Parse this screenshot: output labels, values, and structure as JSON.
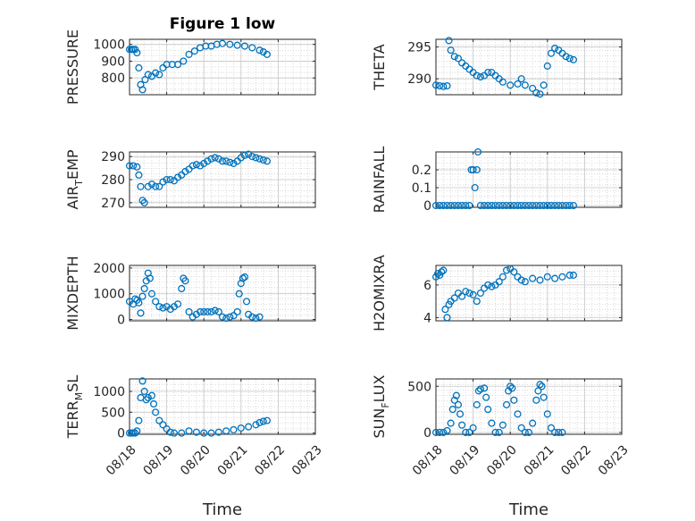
{
  "chart_data": [
    {
      "type": "scatter",
      "title": "Figure 1 low",
      "ylabel": "PRESSURE",
      "xlabel": "",
      "ylim": [
        700,
        1030
      ],
      "yticks": [
        800,
        900,
        1000
      ],
      "xlim": [
        0,
        5
      ],
      "xticklabels": [],
      "marker_color": "#0072BD",
      "grid": true,
      "points": [
        [
          0.0,
          970
        ],
        [
          0.05,
          970
        ],
        [
          0.1,
          970
        ],
        [
          0.15,
          970
        ],
        [
          0.2,
          950
        ],
        [
          0.25,
          860
        ],
        [
          0.3,
          760
        ],
        [
          0.35,
          730
        ],
        [
          0.42,
          790
        ],
        [
          0.5,
          820
        ],
        [
          0.6,
          810
        ],
        [
          0.7,
          830
        ],
        [
          0.8,
          820
        ],
        [
          0.9,
          860
        ],
        [
          1.0,
          880
        ],
        [
          1.15,
          880
        ],
        [
          1.3,
          880
        ],
        [
          1.45,
          900
        ],
        [
          1.6,
          940
        ],
        [
          1.75,
          960
        ],
        [
          1.9,
          980
        ],
        [
          2.05,
          990
        ],
        [
          2.2,
          990
        ],
        [
          2.35,
          1000
        ],
        [
          2.5,
          1005
        ],
        [
          2.7,
          1000
        ],
        [
          2.9,
          995
        ],
        [
          3.1,
          990
        ],
        [
          3.3,
          980
        ],
        [
          3.5,
          965
        ],
        [
          3.6,
          955
        ],
        [
          3.7,
          940
        ]
      ]
    },
    {
      "type": "scatter",
      "title": "",
      "ylabel": "THETA",
      "xlabel": "",
      "ylim": [
        287.5,
        296.2
      ],
      "yticks": [
        290,
        295
      ],
      "xlim": [
        0,
        5
      ],
      "xticklabels": [],
      "marker_color": "#0072BD",
      "grid": true,
      "points": [
        [
          0.0,
          289
        ],
        [
          0.1,
          288.9
        ],
        [
          0.2,
          288.8
        ],
        [
          0.3,
          288.9
        ],
        [
          0.35,
          296
        ],
        [
          0.4,
          294.5
        ],
        [
          0.5,
          293.5
        ],
        [
          0.6,
          293.2
        ],
        [
          0.7,
          292.5
        ],
        [
          0.8,
          292
        ],
        [
          0.9,
          291.5
        ],
        [
          1.0,
          291
        ],
        [
          1.1,
          290.5
        ],
        [
          1.2,
          290.3
        ],
        [
          1.3,
          290.5
        ],
        [
          1.4,
          291
        ],
        [
          1.5,
          291
        ],
        [
          1.6,
          290.5
        ],
        [
          1.7,
          290
        ],
        [
          1.8,
          289.5
        ],
        [
          2.0,
          289
        ],
        [
          2.2,
          289.2
        ],
        [
          2.3,
          290
        ],
        [
          2.4,
          289
        ],
        [
          2.6,
          288.5
        ],
        [
          2.7,
          287.8
        ],
        [
          2.8,
          287.6
        ],
        [
          2.9,
          289
        ],
        [
          3.0,
          292
        ],
        [
          3.1,
          294
        ],
        [
          3.2,
          294.8
        ],
        [
          3.3,
          294.5
        ],
        [
          3.4,
          294
        ],
        [
          3.5,
          293.5
        ],
        [
          3.6,
          293.2
        ],
        [
          3.7,
          293
        ]
      ]
    },
    {
      "type": "scatter",
      "title": "",
      "ylabel": "AIR_TEMP",
      "ylabel_main": "AIR",
      "ylabel_sub": "T",
      "ylabel_rest": "EMP",
      "xlabel": "",
      "ylim": [
        268,
        292
      ],
      "yticks": [
        270,
        280,
        290
      ],
      "xlim": [
        0,
        5
      ],
      "xticklabels": [],
      "marker_color": "#0072BD",
      "grid": true,
      "points": [
        [
          0.0,
          286
        ],
        [
          0.1,
          286
        ],
        [
          0.2,
          285.5
        ],
        [
          0.25,
          282
        ],
        [
          0.3,
          277
        ],
        [
          0.35,
          271
        ],
        [
          0.4,
          270
        ],
        [
          0.5,
          277
        ],
        [
          0.6,
          278
        ],
        [
          0.7,
          277
        ],
        [
          0.8,
          277
        ],
        [
          0.9,
          279
        ],
        [
          1.0,
          280
        ],
        [
          1.1,
          280
        ],
        [
          1.2,
          279.5
        ],
        [
          1.3,
          281
        ],
        [
          1.4,
          282
        ],
        [
          1.5,
          283.5
        ],
        [
          1.6,
          284.5
        ],
        [
          1.7,
          286
        ],
        [
          1.8,
          286.5
        ],
        [
          1.9,
          286
        ],
        [
          2.0,
          287
        ],
        [
          2.1,
          288
        ],
        [
          2.2,
          289
        ],
        [
          2.3,
          289.5
        ],
        [
          2.4,
          289
        ],
        [
          2.5,
          288
        ],
        [
          2.6,
          288
        ],
        [
          2.7,
          287.5
        ],
        [
          2.8,
          287
        ],
        [
          2.9,
          288
        ],
        [
          3.0,
          289.5
        ],
        [
          3.1,
          290.5
        ],
        [
          3.2,
          291
        ],
        [
          3.3,
          290
        ],
        [
          3.4,
          289.5
        ],
        [
          3.5,
          289
        ],
        [
          3.6,
          288.5
        ],
        [
          3.7,
          288
        ]
      ]
    },
    {
      "type": "scatter",
      "title": "",
      "ylabel": "RAINFALL",
      "xlabel": "",
      "ylim": [
        -0.01,
        0.3
      ],
      "yticks": [
        0,
        0.1,
        0.2
      ],
      "xlim": [
        0,
        5
      ],
      "xticklabels": [],
      "marker_color": "#0072BD",
      "grid": true,
      "points": [
        [
          0.0,
          0
        ],
        [
          0.1,
          0
        ],
        [
          0.2,
          0
        ],
        [
          0.3,
          0
        ],
        [
          0.4,
          0
        ],
        [
          0.5,
          0
        ],
        [
          0.6,
          0
        ],
        [
          0.7,
          0
        ],
        [
          0.8,
          0
        ],
        [
          0.9,
          0
        ],
        [
          0.95,
          0.2
        ],
        [
          1.0,
          0.2
        ],
        [
          1.05,
          0.1
        ],
        [
          1.1,
          0.2
        ],
        [
          1.13,
          0.3
        ],
        [
          1.2,
          0
        ],
        [
          1.3,
          0
        ],
        [
          1.4,
          0
        ],
        [
          1.5,
          0
        ],
        [
          1.6,
          0
        ],
        [
          1.7,
          0
        ],
        [
          1.8,
          0
        ],
        [
          1.9,
          0
        ],
        [
          2.0,
          0
        ],
        [
          2.1,
          0
        ],
        [
          2.2,
          0
        ],
        [
          2.3,
          0
        ],
        [
          2.4,
          0
        ],
        [
          2.5,
          0
        ],
        [
          2.6,
          0
        ],
        [
          2.7,
          0
        ],
        [
          2.8,
          0
        ],
        [
          2.9,
          0
        ],
        [
          3.0,
          0
        ],
        [
          3.1,
          0
        ],
        [
          3.2,
          0
        ],
        [
          3.3,
          0
        ],
        [
          3.4,
          0
        ],
        [
          3.5,
          0
        ],
        [
          3.6,
          0
        ],
        [
          3.7,
          0
        ]
      ]
    },
    {
      "type": "scatter",
      "title": "",
      "ylabel": "MIXDEPTH",
      "xlabel": "",
      "ylim": [
        -50,
        2100
      ],
      "yticks": [
        0,
        1000,
        2000
      ],
      "xlim": [
        0,
        5
      ],
      "xticklabels": [],
      "marker_color": "#0072BD",
      "grid": true,
      "points": [
        [
          0.0,
          700
        ],
        [
          0.1,
          600
        ],
        [
          0.15,
          800
        ],
        [
          0.2,
          750
        ],
        [
          0.25,
          650
        ],
        [
          0.3,
          250
        ],
        [
          0.35,
          900
        ],
        [
          0.4,
          1200
        ],
        [
          0.45,
          1500
        ],
        [
          0.5,
          1800
        ],
        [
          0.55,
          1600
        ],
        [
          0.6,
          1000
        ],
        [
          0.7,
          700
        ],
        [
          0.8,
          500
        ],
        [
          0.9,
          450
        ],
        [
          1.0,
          500
        ],
        [
          1.1,
          400
        ],
        [
          1.2,
          500
        ],
        [
          1.3,
          600
        ],
        [
          1.4,
          1200
        ],
        [
          1.45,
          1600
        ],
        [
          1.5,
          1500
        ],
        [
          1.6,
          300
        ],
        [
          1.7,
          100
        ],
        [
          1.8,
          200
        ],
        [
          1.9,
          300
        ],
        [
          2.0,
          300
        ],
        [
          2.1,
          300
        ],
        [
          2.2,
          300
        ],
        [
          2.3,
          350
        ],
        [
          2.4,
          300
        ],
        [
          2.5,
          100
        ],
        [
          2.6,
          50
        ],
        [
          2.7,
          100
        ],
        [
          2.8,
          150
        ],
        [
          2.9,
          300
        ],
        [
          2.95,
          1000
        ],
        [
          3.0,
          1400
        ],
        [
          3.05,
          1600
        ],
        [
          3.1,
          1650
        ],
        [
          3.15,
          700
        ],
        [
          3.2,
          200
        ],
        [
          3.3,
          100
        ],
        [
          3.4,
          50
        ],
        [
          3.5,
          100
        ]
      ]
    },
    {
      "type": "scatter",
      "title": "",
      "ylabel": "H2OMIXRA",
      "xlabel": "",
      "ylim": [
        3.8,
        7.2
      ],
      "yticks": [
        4,
        6
      ],
      "xlim": [
        0,
        5
      ],
      "xticklabels": [],
      "marker_color": "#0072BD",
      "grid": true,
      "points": [
        [
          0.0,
          6.5
        ],
        [
          0.05,
          6.7
        ],
        [
          0.1,
          6.6
        ],
        [
          0.15,
          6.8
        ],
        [
          0.2,
          6.9
        ],
        [
          0.25,
          4.5
        ],
        [
          0.3,
          4.0
        ],
        [
          0.35,
          4.8
        ],
        [
          0.4,
          5.0
        ],
        [
          0.5,
          5.2
        ],
        [
          0.6,
          5.5
        ],
        [
          0.7,
          5.3
        ],
        [
          0.8,
          5.6
        ],
        [
          0.9,
          5.5
        ],
        [
          1.0,
          5.4
        ],
        [
          1.1,
          5.0
        ],
        [
          1.2,
          5.5
        ],
        [
          1.3,
          5.8
        ],
        [
          1.4,
          6.0
        ],
        [
          1.5,
          5.9
        ],
        [
          1.6,
          6.0
        ],
        [
          1.7,
          6.2
        ],
        [
          1.8,
          6.5
        ],
        [
          1.9,
          6.9
        ],
        [
          2.0,
          7.0
        ],
        [
          2.1,
          6.8
        ],
        [
          2.2,
          6.5
        ],
        [
          2.3,
          6.3
        ],
        [
          2.4,
          6.2
        ],
        [
          2.6,
          6.4
        ],
        [
          2.8,
          6.3
        ],
        [
          3.0,
          6.5
        ],
        [
          3.2,
          6.4
        ],
        [
          3.4,
          6.5
        ],
        [
          3.6,
          6.6
        ],
        [
          3.7,
          6.6
        ]
      ]
    },
    {
      "type": "scatter",
      "title": "",
      "ylabel": "TERR_MSL",
      "ylabel_main": "TERR",
      "ylabel_sub": "M",
      "ylabel_rest": "SL",
      "xlabel": "Time",
      "ylim": [
        -30,
        1300
      ],
      "yticks": [
        0,
        500,
        1000
      ],
      "xlim": [
        0,
        5
      ],
      "xticklabels": [
        "08/18",
        "08/19",
        "08/20",
        "08/21",
        "08/22",
        "08/23"
      ],
      "marker_color": "#0072BD",
      "grid": true,
      "points": [
        [
          0.0,
          0
        ],
        [
          0.05,
          0
        ],
        [
          0.1,
          0
        ],
        [
          0.15,
          0
        ],
        [
          0.2,
          50
        ],
        [
          0.25,
          300
        ],
        [
          0.3,
          850
        ],
        [
          0.35,
          1250
        ],
        [
          0.4,
          1000
        ],
        [
          0.45,
          800
        ],
        [
          0.5,
          850
        ],
        [
          0.6,
          900
        ],
        [
          0.65,
          700
        ],
        [
          0.7,
          500
        ],
        [
          0.8,
          300
        ],
        [
          0.9,
          200
        ],
        [
          1.0,
          100
        ],
        [
          1.1,
          20
        ],
        [
          1.2,
          0
        ],
        [
          1.4,
          0
        ],
        [
          1.6,
          50
        ],
        [
          1.8,
          20
        ],
        [
          2.0,
          0
        ],
        [
          2.2,
          0
        ],
        [
          2.4,
          20
        ],
        [
          2.6,
          50
        ],
        [
          2.8,
          80
        ],
        [
          3.0,
          120
        ],
        [
          3.2,
          150
        ],
        [
          3.4,
          200
        ],
        [
          3.5,
          250
        ],
        [
          3.6,
          280
        ],
        [
          3.7,
          300
        ]
      ]
    },
    {
      "type": "scatter",
      "title": "",
      "ylabel": "SUN_FLUX",
      "ylabel_main": "SUN",
      "ylabel_sub": "F",
      "ylabel_rest": "LUX",
      "xlabel": "Time",
      "ylim": [
        -20,
        580
      ],
      "yticks": [
        0,
        500
      ],
      "xlim": [
        0,
        5
      ],
      "xticklabels": [
        "08/18",
        "08/19",
        "08/20",
        "08/21",
        "08/22",
        "08/23"
      ],
      "marker_color": "#0072BD",
      "grid": true,
      "points": [
        [
          0.0,
          0
        ],
        [
          0.1,
          0
        ],
        [
          0.2,
          0
        ],
        [
          0.3,
          20
        ],
        [
          0.4,
          100
        ],
        [
          0.45,
          250
        ],
        [
          0.5,
          350
        ],
        [
          0.55,
          400
        ],
        [
          0.6,
          300
        ],
        [
          0.65,
          200
        ],
        [
          0.7,
          80
        ],
        [
          0.8,
          0
        ],
        [
          0.9,
          0
        ],
        [
          1.0,
          50
        ],
        [
          1.1,
          300
        ],
        [
          1.15,
          450
        ],
        [
          1.2,
          470
        ],
        [
          1.3,
          480
        ],
        [
          1.35,
          380
        ],
        [
          1.4,
          250
        ],
        [
          1.5,
          100
        ],
        [
          1.6,
          0
        ],
        [
          1.7,
          0
        ],
        [
          1.8,
          80
        ],
        [
          1.9,
          300
        ],
        [
          1.95,
          450
        ],
        [
          2.0,
          500
        ],
        [
          2.05,
          480
        ],
        [
          2.1,
          350
        ],
        [
          2.2,
          200
        ],
        [
          2.3,
          50
        ],
        [
          2.4,
          0
        ],
        [
          2.5,
          0
        ],
        [
          2.6,
          100
        ],
        [
          2.7,
          350
        ],
        [
          2.75,
          450
        ],
        [
          2.8,
          520
        ],
        [
          2.85,
          500
        ],
        [
          2.9,
          380
        ],
        [
          3.0,
          200
        ],
        [
          3.1,
          50
        ],
        [
          3.2,
          0
        ],
        [
          3.3,
          0
        ],
        [
          3.4,
          0
        ]
      ]
    }
  ]
}
